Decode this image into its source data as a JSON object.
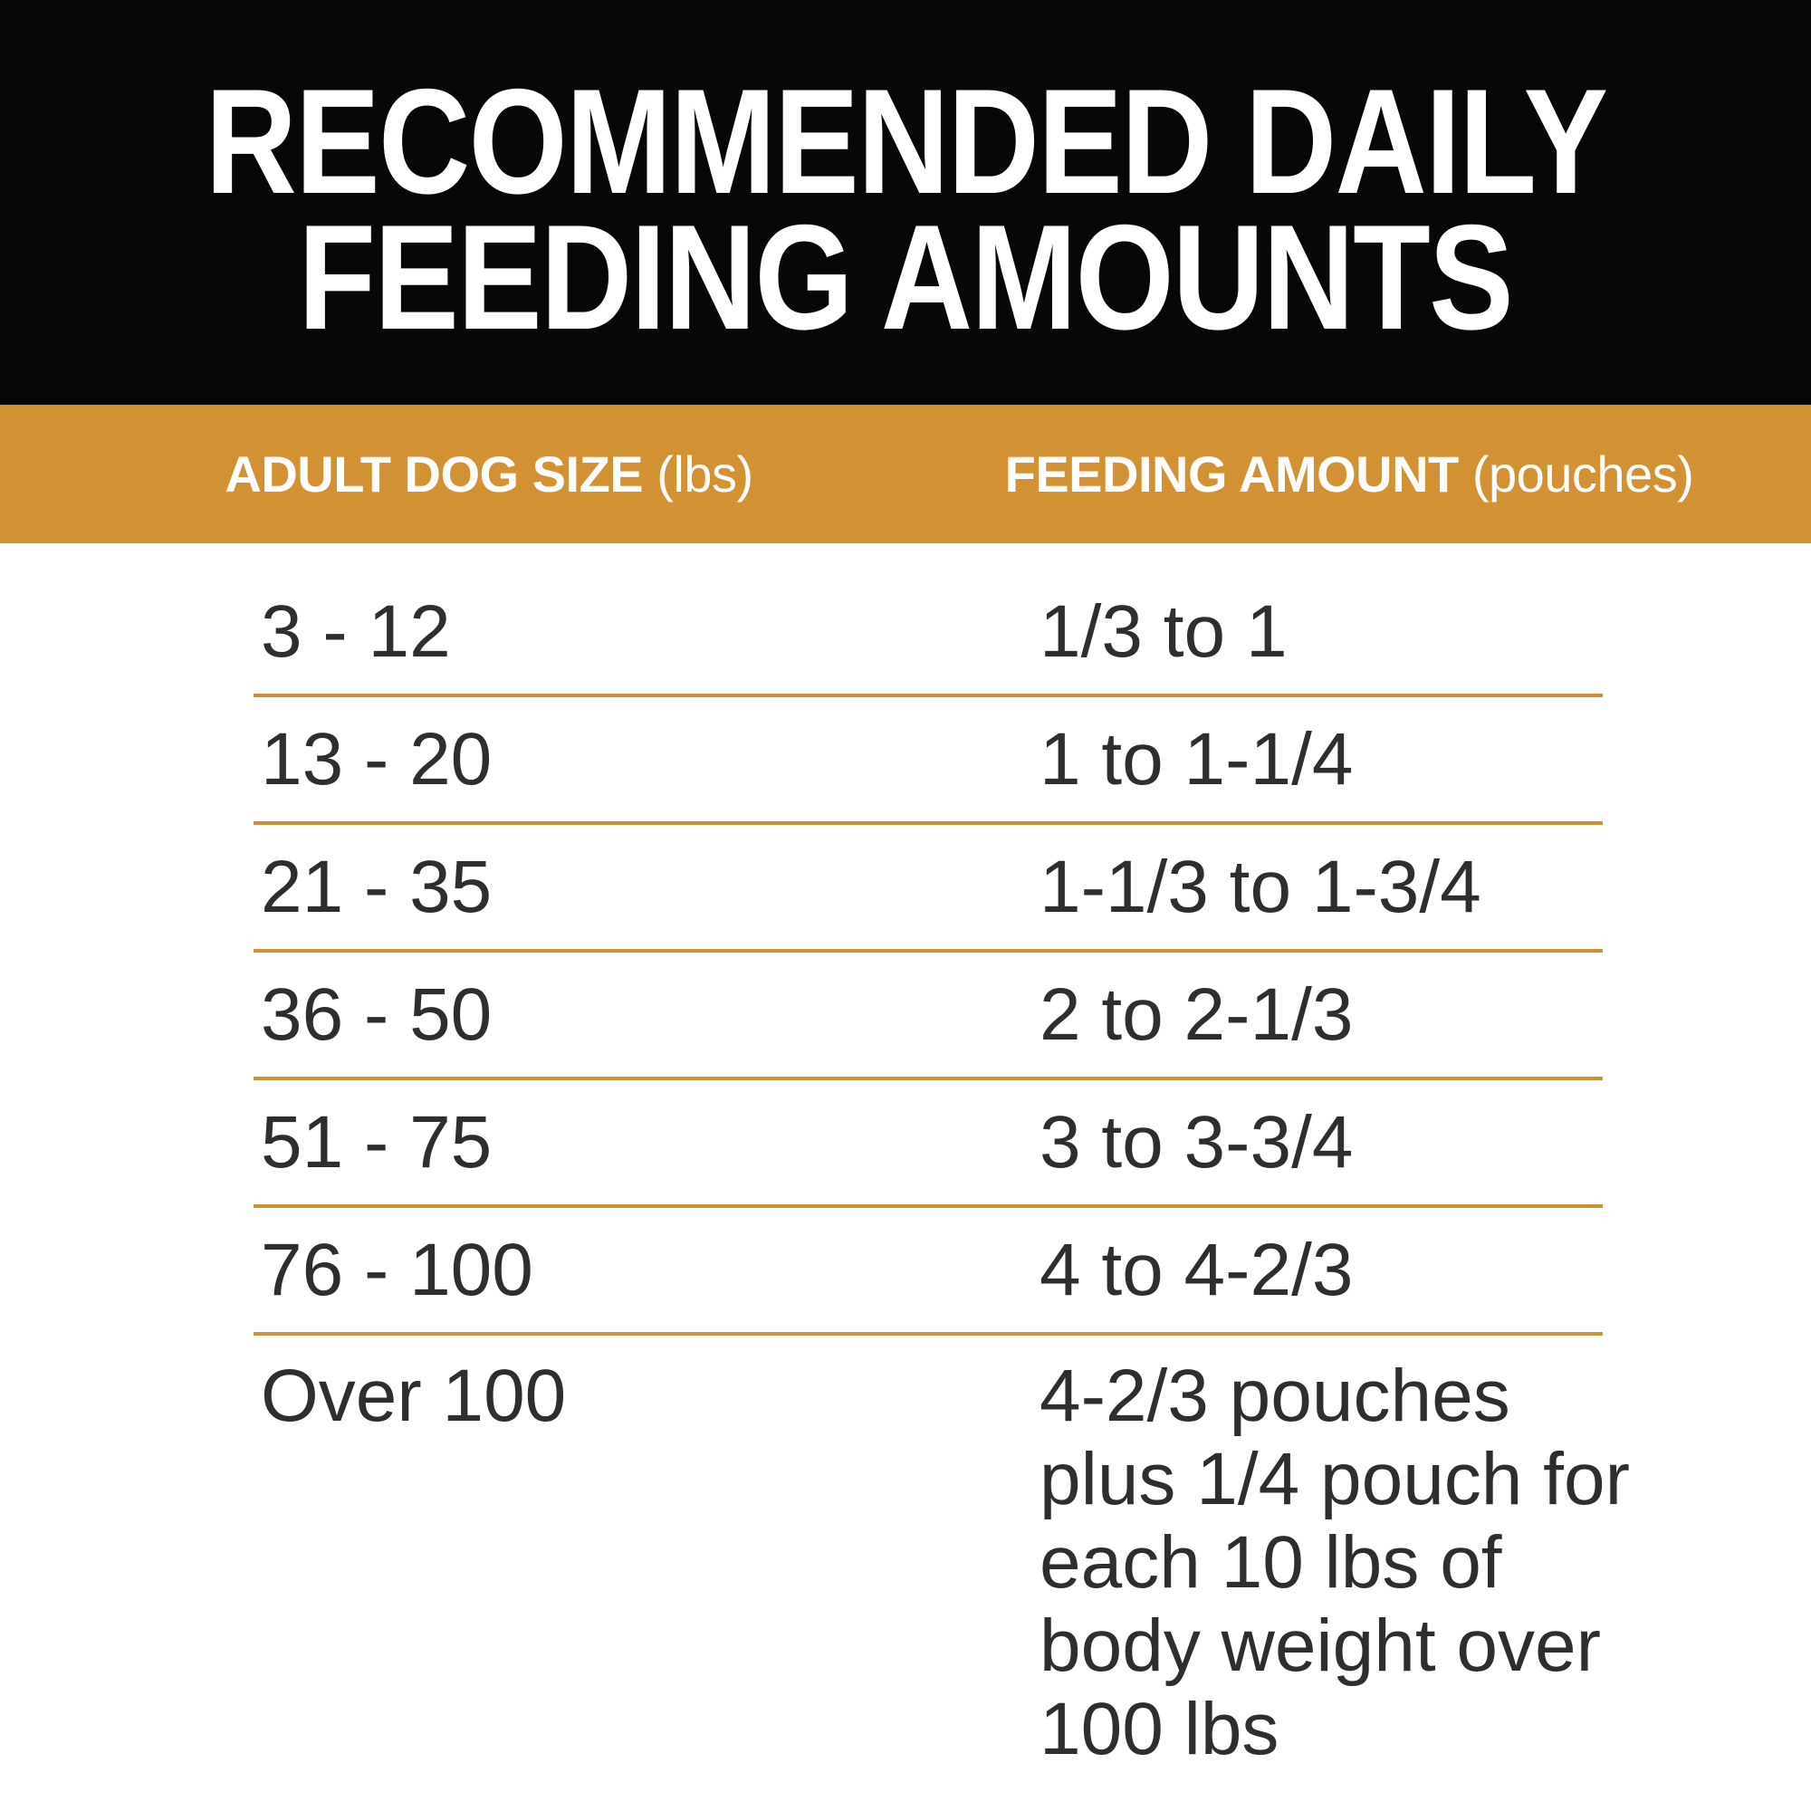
{
  "title": {
    "line1": "RECOMMENDED DAILY",
    "line2": "FEEDING AMOUNTS"
  },
  "column_headers": {
    "size_label": "ADULT DOG SIZE",
    "size_unit": "(lbs)",
    "amount_label": "FEEDING AMOUNT",
    "amount_unit": "(pouches)"
  },
  "colors": {
    "title_band": "#070707",
    "header_band": "#d29234",
    "divider": "#cf9039",
    "body_text": "#2e2e2e",
    "header_text": "#ffffff"
  },
  "chart_data": {
    "type": "table",
    "title": "RECOMMENDED DAILY FEEDING AMOUNTS",
    "columns": [
      "ADULT DOG SIZE (lbs)",
      "FEEDING AMOUNT (pouches)"
    ],
    "rows": [
      [
        "3 - 12",
        "1/3 to 1"
      ],
      [
        "13 - 20",
        "1 to 1-1/4"
      ],
      [
        "21 - 35",
        "1-1/3 to 1-3/4"
      ],
      [
        "36 - 50",
        "2 to 2-1/3"
      ],
      [
        "51 - 75",
        "3 to 3-3/4"
      ],
      [
        "76 - 100",
        "4 to 4-2/3"
      ],
      [
        "Over 100",
        "4-2/3 pouches\nplus 1/4 pouch for\neach 10 lbs of\nbody weight over\n100 lbs"
      ]
    ]
  }
}
